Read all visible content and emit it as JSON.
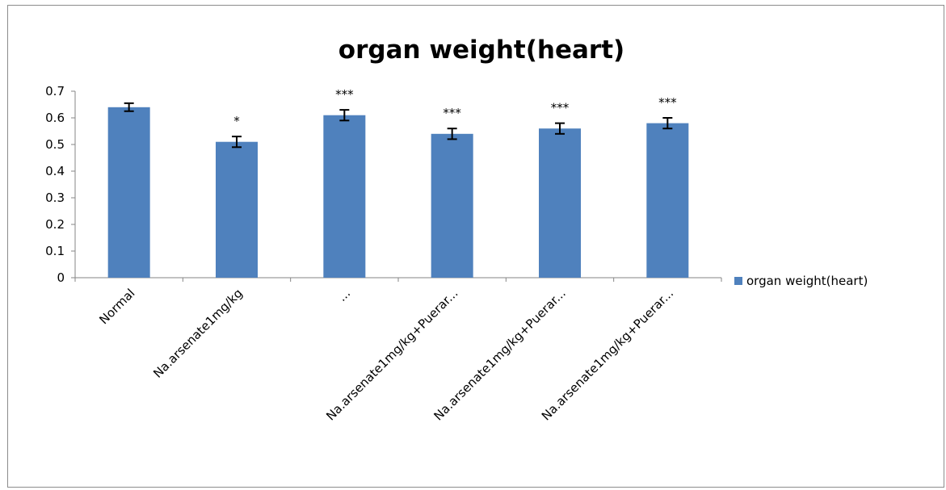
{
  "chart_data": {
    "type": "bar",
    "title": "organ weight(heart)",
    "xlabel": "",
    "ylabel": "",
    "ylim": [
      0,
      0.7
    ],
    "yticks": [
      "0",
      "0.1",
      "0.2",
      "0.3",
      "0.4",
      "0.5",
      "0.6",
      "0.7"
    ],
    "categories": [
      "Normal",
      "Na.arsenate1mg/kg",
      "...",
      "Na.arsenate1mg/kg+Puerar...",
      "Na.arsenate1mg/kg+Puerar...",
      "Na.arsenate1mg/kg+Puerar..."
    ],
    "series": [
      {
        "name": "organ weight(heart)",
        "values": [
          0.64,
          0.51,
          0.61,
          0.54,
          0.56,
          0.58
        ],
        "errors": [
          0.015,
          0.02,
          0.02,
          0.02,
          0.02,
          0.02
        ],
        "significance": [
          "",
          "*",
          "***",
          "***",
          "***",
          "***"
        ]
      }
    ],
    "grid": false,
    "legend_position": "right",
    "bar_color": "#4f81bd"
  }
}
